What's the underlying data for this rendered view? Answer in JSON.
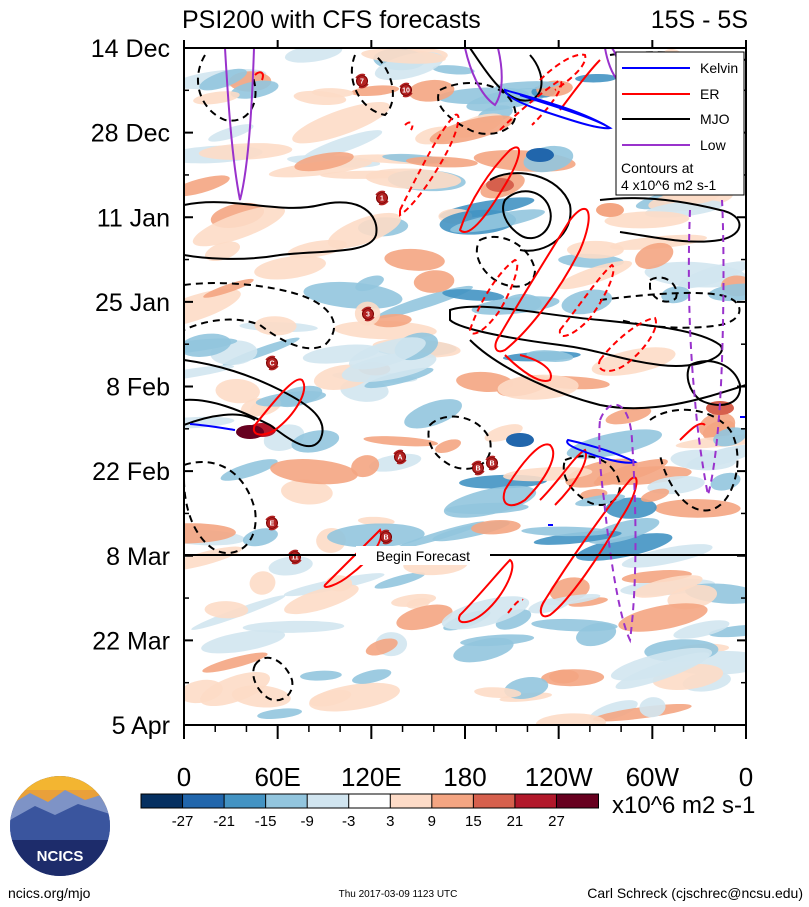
{
  "chart_data": {
    "type": "heatmap",
    "title": "PSI200 with CFS forecasts",
    "region": "15S - 5S",
    "y_labels": [
      "14 Dec",
      "28 Dec",
      "11 Jan",
      "25 Jan",
      "8 Feb",
      "22 Feb",
      "8 Mar",
      "22 Mar",
      "5 Apr"
    ],
    "x_labels": [
      "0",
      "60E",
      "120E",
      "180",
      "120W",
      "60W",
      "0"
    ],
    "x_range": [
      0,
      360
    ],
    "forecast_label": "Begin Forecast",
    "forecast_start": "8 Mar",
    "colorbar": {
      "ticks": [
        "-27",
        "-21",
        "-15",
        "-9",
        "-3",
        "3",
        "9",
        "15",
        "21",
        "27"
      ],
      "colors": [
        "#053061",
        "#2166ac",
        "#4393c3",
        "#92c5de",
        "#d1e5f0",
        "#ffffff",
        "#fddbc7",
        "#f4a582",
        "#d6604d",
        "#b2182b",
        "#67001f"
      ],
      "units": "x10^6 m2 s-1"
    },
    "legend": {
      "entries": [
        {
          "name": "Kelvin",
          "color": "#0000ff"
        },
        {
          "name": "ER",
          "color": "#ff0000"
        },
        {
          "name": "MJO",
          "color": "#000000"
        },
        {
          "name": "Low",
          "color": "#9932cc"
        }
      ],
      "note1": "Contours at",
      "note2": "4 x10^6 m2 s-1"
    },
    "tc_markers": [
      "7",
      "10",
      "1",
      "3",
      "C",
      "A",
      "B",
      "B",
      "E",
      "B",
      "11"
    ]
  },
  "footer": {
    "left": "ncics.org/mjo",
    "center": "Thu 2017-03-09 1123 UTC",
    "right": "Carl Schreck (cjschrec@ncsu.edu)"
  },
  "logo": {
    "text": "NCICS"
  }
}
